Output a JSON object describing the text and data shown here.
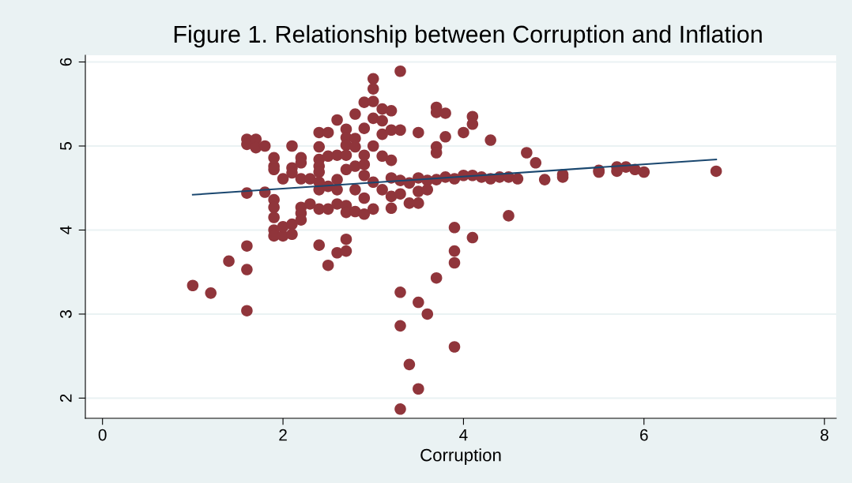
{
  "chart_data": {
    "type": "scatter",
    "title": "Figure 1. Relationship between Corruption and Inflation",
    "xlabel": "Corruption",
    "xlim": [
      -0.19,
      8.13
    ],
    "ylim": [
      1.76,
      6.08
    ],
    "xticks": [
      0,
      2,
      4,
      6,
      8
    ],
    "yticks": [
      2,
      3,
      4,
      5,
      6
    ],
    "grid": "y",
    "marker": "circle",
    "series": [
      {
        "color": "#90353b",
        "x": [
          1.0,
          1.2,
          1.4,
          1.6,
          1.6,
          1.6,
          1.6,
          1.6,
          1.6,
          1.7,
          1.7,
          1.8,
          1.8,
          1.9,
          1.9,
          1.9,
          1.9,
          1.9,
          1.9,
          1.9,
          1.9,
          2.0,
          2.0,
          2.0,
          2.1,
          2.1,
          2.1,
          2.1,
          2.1,
          2.2,
          2.2,
          2.2,
          2.2,
          2.2,
          2.2,
          2.3,
          2.3,
          2.4,
          2.4,
          2.4,
          2.4,
          2.4,
          2.4,
          2.4,
          2.4,
          2.4,
          2.5,
          2.5,
          2.5,
          2.5,
          2.5,
          2.6,
          2.6,
          2.6,
          2.6,
          2.6,
          2.6,
          2.7,
          2.7,
          2.7,
          2.7,
          2.7,
          2.7,
          2.7,
          2.7,
          2.7,
          2.8,
          2.8,
          2.8,
          2.8,
          2.8,
          2.8,
          2.9,
          2.9,
          2.9,
          2.9,
          2.9,
          2.9,
          2.9,
          3.0,
          3.0,
          3.0,
          3.0,
          3.0,
          3.0,
          3.0,
          3.1,
          3.1,
          3.1,
          3.1,
          3.1,
          3.2,
          3.2,
          3.2,
          3.2,
          3.2,
          3.2,
          3.3,
          3.3,
          3.3,
          3.3,
          3.3,
          3.3,
          3.3,
          3.4,
          3.4,
          3.4,
          3.5,
          3.5,
          3.5,
          3.5,
          3.5,
          3.5,
          3.6,
          3.6,
          3.6,
          3.7,
          3.7,
          3.7,
          3.7,
          3.7,
          3.7,
          3.8,
          3.8,
          3.8,
          3.9,
          3.9,
          3.9,
          3.9,
          3.9,
          4.0,
          4.0,
          4.1,
          4.1,
          4.1,
          4.1,
          4.2,
          4.3,
          4.3,
          4.4,
          4.5,
          4.5,
          4.6,
          4.7,
          4.8,
          4.9,
          5.1,
          5.1,
          5.5,
          5.5,
          5.7,
          5.7,
          5.8,
          5.9,
          6.0,
          6.8
        ],
        "values": [
          3.34,
          3.25,
          3.63,
          3.04,
          3.53,
          3.81,
          4.44,
          5.08,
          5.02,
          5.08,
          4.98,
          5.0,
          4.45,
          4.86,
          4.76,
          4.72,
          4.36,
          4.27,
          4.15,
          4.0,
          3.93,
          3.93,
          4.04,
          4.61,
          5.0,
          4.74,
          4.68,
          4.07,
          3.95,
          4.86,
          4.8,
          4.61,
          4.27,
          4.2,
          4.12,
          4.31,
          4.61,
          5.16,
          4.99,
          4.84,
          4.76,
          4.69,
          4.57,
          4.48,
          4.25,
          3.82,
          5.16,
          4.88,
          4.52,
          4.25,
          3.58,
          5.31,
          4.89,
          4.6,
          4.48,
          4.31,
          3.73,
          5.2,
          5.1,
          5.01,
          4.89,
          4.72,
          4.29,
          4.21,
          3.89,
          3.75,
          5.38,
          5.09,
          4.99,
          4.76,
          4.48,
          4.22,
          5.52,
          5.21,
          4.89,
          4.78,
          4.65,
          4.38,
          4.19,
          5.8,
          5.68,
          5.53,
          5.33,
          5.0,
          4.57,
          4.25,
          5.44,
          5.3,
          5.14,
          4.88,
          4.48,
          5.42,
          5.19,
          4.83,
          4.62,
          4.4,
          4.26,
          5.89,
          5.19,
          4.59,
          4.43,
          3.26,
          2.86,
          1.87,
          4.56,
          4.32,
          2.4,
          5.16,
          4.62,
          4.46,
          4.32,
          3.14,
          2.11,
          4.59,
          4.48,
          3.0,
          5.46,
          5.4,
          4.99,
          4.92,
          4.6,
          3.43,
          5.39,
          5.11,
          4.63,
          4.61,
          4.03,
          3.75,
          3.61,
          2.61,
          5.16,
          4.65,
          5.35,
          5.26,
          4.65,
          3.91,
          4.63,
          5.07,
          4.61,
          4.63,
          4.63,
          4.17,
          4.61,
          4.92,
          4.8,
          4.6,
          4.66,
          4.63,
          4.71,
          4.69,
          4.75,
          4.7,
          4.75,
          4.72,
          4.69,
          4.7
        ]
      },
      {
        "type": "line",
        "marker": "none",
        "color": "#1a476f",
        "x": [
          1.0,
          6.8
        ],
        "values": [
          4.42,
          4.84
        ]
      }
    ]
  }
}
